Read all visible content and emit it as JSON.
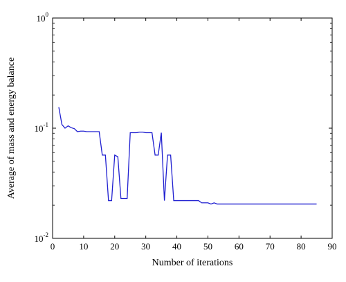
{
  "chart_data": {
    "type": "line",
    "xlabel": "Number of iterations",
    "ylabel": "Average of mass and energy balance",
    "xlim": [
      0,
      90
    ],
    "ylim": [
      0.01,
      1
    ],
    "yscale": "log",
    "grid": false,
    "x_ticks": [
      "0",
      "10",
      "20",
      "30",
      "40",
      "50",
      "60",
      "70",
      "80",
      "90"
    ],
    "y_ticks": [
      {
        "base": "10",
        "exp": "-2"
      },
      {
        "base": "10",
        "exp": "-1"
      },
      {
        "base": "10",
        "exp": "0"
      }
    ],
    "line_color": "#1f1fd0",
    "x": [
      2,
      3,
      4,
      5,
      6,
      7,
      8,
      9,
      10,
      11,
      12,
      13,
      14,
      15,
      16,
      17,
      18,
      19,
      20,
      21,
      22,
      23,
      24,
      25,
      26,
      27,
      28,
      29,
      30,
      31,
      32,
      33,
      34,
      35,
      36,
      37,
      38,
      39,
      40,
      41,
      42,
      43,
      44,
      45,
      46,
      47,
      48,
      49,
      50,
      51,
      52,
      53,
      55,
      60,
      65,
      70,
      75,
      80,
      85
    ],
    "y": [
      0.155,
      0.108,
      0.1,
      0.105,
      0.101,
      0.099,
      0.093,
      0.094,
      0.094,
      0.093,
      0.093,
      0.093,
      0.093,
      0.093,
      0.057,
      0.057,
      0.022,
      0.022,
      0.057,
      0.055,
      0.023,
      0.023,
      0.023,
      0.091,
      0.091,
      0.091,
      0.092,
      0.092,
      0.091,
      0.091,
      0.091,
      0.057,
      0.057,
      0.091,
      0.022,
      0.057,
      0.057,
      0.022,
      0.022,
      0.022,
      0.022,
      0.022,
      0.022,
      0.022,
      0.022,
      0.022,
      0.021,
      0.021,
      0.021,
      0.0205,
      0.021,
      0.0205,
      0.0205,
      0.0205,
      0.0205,
      0.0205,
      0.0205,
      0.0205,
      0.0205
    ]
  }
}
